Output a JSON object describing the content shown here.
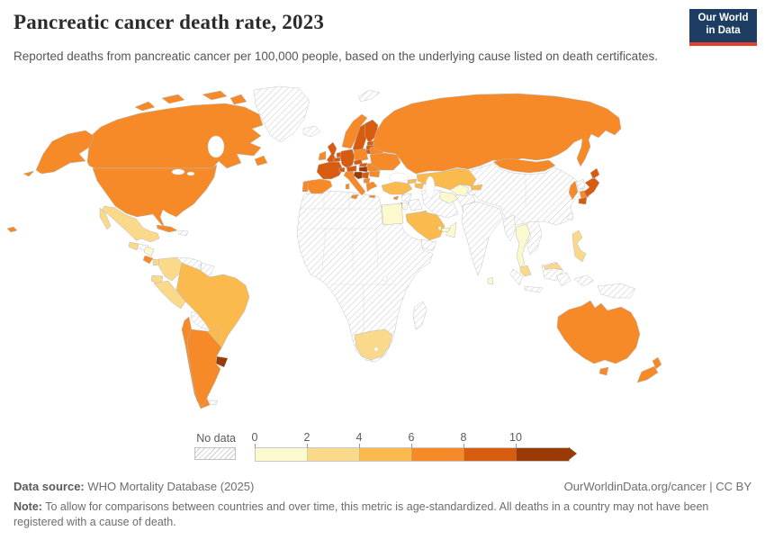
{
  "header": {
    "title": "Pancreatic cancer death rate, 2023",
    "subtitle": "Reported deaths from pancreatic cancer per 100,000 people, based on the underlying cause listed on death certificates.",
    "logo": {
      "line1": "Our World",
      "line2": "in Data",
      "bg_color": "#1d3d63",
      "accent_color": "#e0422d"
    }
  },
  "legend": {
    "no_data_label": "No data",
    "ticks": [
      "0",
      "2",
      "4",
      "6",
      "8",
      "10"
    ]
  },
  "footer": {
    "source_label": "Data source:",
    "source_text": " WHO Mortality Database (2025)",
    "link_text": "OurWorldinData.org/cancer | CC BY",
    "note_label": "Note:",
    "note_text": " To allow for comparisons between countries and over time, this metric is age-standardized. All deaths in a country may not have been registered with a cause of death."
  },
  "chart_data": {
    "type": "choropleth_map",
    "title": "Pancreatic cancer death rate, 2023",
    "metric": "Reported deaths from pancreatic cancer per 100,000 people (age-standardized)",
    "year": 2023,
    "legend_ticks": [
      0,
      2,
      4,
      6,
      8,
      10
    ],
    "no_data_style": "diagonal-hatch",
    "border_color": "#b9b9b9",
    "bins": [
      {
        "range": "0-2",
        "color": "#fcf9cf"
      },
      {
        "range": "2-4",
        "color": "#fbd98b"
      },
      {
        "range": "4-6",
        "color": "#fbba4e"
      },
      {
        "range": "6-8",
        "color": "#f68a28"
      },
      {
        "range": "8-10",
        "color": "#d85c10"
      },
      {
        "range": "10+",
        "color": "#9a3a07"
      }
    ],
    "regions": {
      "canada": {
        "label": "Canada",
        "bin": 3
      },
      "united_states": {
        "label": "United States",
        "bin": 3
      },
      "greenland": {
        "label": "Greenland",
        "bin": null
      },
      "mexico": {
        "label": "Mexico",
        "bin": 1
      },
      "guatemala": {
        "label": "Guatemala",
        "bin": 1
      },
      "honduras": {
        "label": "Honduras",
        "bin": null
      },
      "nicaragua": {
        "label": "Nicaragua",
        "bin": 0
      },
      "costa_rica": {
        "label": "Costa Rica",
        "bin": 3
      },
      "panama": {
        "label": "Panama",
        "bin": 1
      },
      "cuba": {
        "label": "Cuba",
        "bin": 3
      },
      "haiti": {
        "label": "Haiti & Dominican Republic",
        "bin": null
      },
      "colombia": {
        "label": "Colombia",
        "bin": 1
      },
      "venezuela": {
        "label": "Venezuela",
        "bin": null
      },
      "guyana": {
        "label": "Guyana & Suriname",
        "bin": null
      },
      "ecuador": {
        "label": "Ecuador",
        "bin": 1
      },
      "peru": {
        "label": "Peru",
        "bin": 1
      },
      "brazil": {
        "label": "Brazil",
        "bin": 2
      },
      "bolivia": {
        "label": "Bolivia",
        "bin": null
      },
      "paraguay": {
        "label": "Paraguay",
        "bin": 2
      },
      "chile": {
        "label": "Chile",
        "bin": 3
      },
      "argentina": {
        "label": "Argentina",
        "bin": 3
      },
      "uruguay": {
        "label": "Uruguay",
        "bin": 5
      },
      "falklands": {
        "label": "Falkland Islands",
        "bin": null
      },
      "iceland": {
        "label": "Iceland",
        "bin": null
      },
      "svalbard": {
        "label": "Svalbard",
        "bin": null
      },
      "norway": {
        "label": "Norway",
        "bin": 3
      },
      "sweden": {
        "label": "Sweden",
        "bin": 4
      },
      "finland": {
        "label": "Finland",
        "bin": 4
      },
      "denmark": {
        "label": "Denmark",
        "bin": 4
      },
      "united_kingdom": {
        "label": "United Kingdom",
        "bin": 4
      },
      "ireland": {
        "label": "Ireland",
        "bin": 3
      },
      "netherlands": {
        "label": "Netherlands",
        "bin": 4
      },
      "belgium": {
        "label": "Belgium",
        "bin": 4
      },
      "germany": {
        "label": "Germany",
        "bin": 4
      },
      "france": {
        "label": "France",
        "bin": 4
      },
      "spain": {
        "label": "Spain",
        "bin": 3
      },
      "portugal": {
        "label": "Portugal",
        "bin": 3
      },
      "italy": {
        "label": "Italy",
        "bin": 3
      },
      "switzerland": {
        "label": "Switzerland",
        "bin": 4
      },
      "austria": {
        "label": "Austria",
        "bin": 4
      },
      "czechia": {
        "label": "Czechia",
        "bin": 4
      },
      "slovakia": {
        "label": "Slovakia",
        "bin": 4
      },
      "poland": {
        "label": "Poland",
        "bin": 3
      },
      "hungary": {
        "label": "Hungary",
        "bin": 5
      },
      "croatia": {
        "label": "Croatia & Bosnia",
        "bin": 5
      },
      "serbia": {
        "label": "Serbia",
        "bin": 4
      },
      "albania_macedonia": {
        "label": "Albania & North Macedonia",
        "bin": 3
      },
      "greece": {
        "label": "Greece",
        "bin": 3
      },
      "romania": {
        "label": "Romania",
        "bin": 3
      },
      "bulgaria": {
        "label": "Bulgaria",
        "bin": 3
      },
      "moldova": {
        "label": "Moldova",
        "bin": 3
      },
      "estonia": {
        "label": "Estonia",
        "bin": 4
      },
      "latvia": {
        "label": "Latvia",
        "bin": 4
      },
      "lithuania": {
        "label": "Lithuania",
        "bin": 4
      },
      "belarus": {
        "label": "Belarus",
        "bin": 3
      },
      "ukraine": {
        "label": "Ukraine",
        "bin": 3
      },
      "russia": {
        "label": "Russia",
        "bin": 3
      },
      "kazakhstan": {
        "label": "Kazakhstan",
        "bin": 2
      },
      "uzbekistan": {
        "label": "Uzbekistan",
        "bin": 0
      },
      "turkmenistan": {
        "label": "Turkmenistan",
        "bin": 0
      },
      "kyrgyzstan": {
        "label": "Kyrgyzstan",
        "bin": 2
      },
      "tajikistan": {
        "label": "Tajikistan",
        "bin": null
      },
      "turkey": {
        "label": "Turkey",
        "bin": 2
      },
      "cyprus": {
        "label": "Cyprus",
        "bin": 3
      },
      "georgia": {
        "label": "Georgia",
        "bin": 2
      },
      "azerbaijan_armenia": {
        "label": "Azerbaijan & Armenia",
        "bin": 2
      },
      "syria": {
        "label": "Syria",
        "bin": null
      },
      "iraq": {
        "label": "Iraq",
        "bin": null
      },
      "iran": {
        "label": "Iran",
        "bin": null
      },
      "afghanistan": {
        "label": "Afghanistan",
        "bin": null
      },
      "pakistan": {
        "label": "Pakistan",
        "bin": null
      },
      "israel": {
        "label": "Israel",
        "bin": 3
      },
      "jordan": {
        "label": "Jordan",
        "bin": null
      },
      "saudi_arabia": {
        "label": "Saudi Arabia",
        "bin": 2
      },
      "kuwait": {
        "label": "Kuwait",
        "bin": 2
      },
      "qatar": {
        "label": "Qatar",
        "bin": 0
      },
      "uae": {
        "label": "United Arab Emirates",
        "bin": 0
      },
      "oman": {
        "label": "Oman",
        "bin": 0
      },
      "yemen": {
        "label": "Yemen",
        "bin": null
      },
      "egypt": {
        "label": "Egypt",
        "bin": 0
      },
      "africa_other": {
        "label": "Africa (other countries)",
        "bin": null
      },
      "south_africa": {
        "label": "South Africa",
        "bin": 1
      },
      "madagascar": {
        "label": "Madagascar",
        "bin": null
      },
      "india": {
        "label": "India",
        "bin": null
      },
      "sri_lanka": {
        "label": "Sri Lanka",
        "bin": 0
      },
      "china": {
        "label": "China",
        "bin": null
      },
      "mongolia": {
        "label": "Mongolia",
        "bin": 3
      },
      "north_korea": {
        "label": "North Korea",
        "bin": null
      },
      "south_korea": {
        "label": "South Korea",
        "bin": 3
      },
      "japan": {
        "label": "Japan",
        "bin": 4
      },
      "taiwan": {
        "label": "Taiwan",
        "bin": null
      },
      "myanmar": {
        "label": "Myanmar",
        "bin": null
      },
      "thailand": {
        "label": "Thailand",
        "bin": 0
      },
      "indochina": {
        "label": "Vietnam, Laos & Cambodia",
        "bin": null
      },
      "malaysia": {
        "label": "Malaysia",
        "bin": 1
      },
      "indonesia": {
        "label": "Indonesia",
        "bin": null
      },
      "philippines": {
        "label": "Philippines",
        "bin": 1
      },
      "papua_new_guinea": {
        "label": "Papua New Guinea & West Papua",
        "bin": null
      },
      "australia": {
        "label": "Australia",
        "bin": 3
      },
      "new_zealand": {
        "label": "New Zealand",
        "bin": 3
      }
    }
  }
}
